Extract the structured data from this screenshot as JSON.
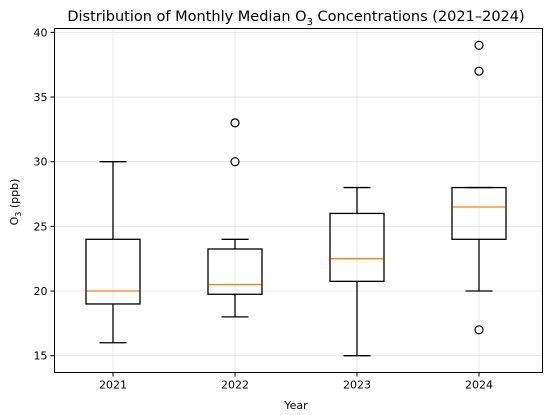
{
  "colors": {
    "median": "#ff7f0e",
    "box": "#000000",
    "grid": "#e3e3e3"
  },
  "chart_data": {
    "type": "boxplot",
    "title_main": "Distribution of Monthly Median O",
    "title_sub": "3",
    "title_rest": " Concentrations (2021–2024)",
    "xlabel": "Year",
    "ylabel_main": "O",
    "ylabel_sub": "3",
    "ylabel_rest": " (ppb)",
    "categories": [
      "2021",
      "2022",
      "2023",
      "2024"
    ],
    "yticks": [
      15,
      20,
      25,
      30,
      35,
      40
    ],
    "ylim": [
      13.7,
      40.3
    ],
    "grid": true,
    "boxes": [
      {
        "label": "2021",
        "whislo": 16,
        "q1": 19,
        "med": 20,
        "q3": 24,
        "whishi": 30,
        "fliers": []
      },
      {
        "label": "2022",
        "whislo": 18,
        "q1": 19.75,
        "med": 20.5,
        "q3": 23.25,
        "whishi": 24,
        "fliers": [
          30,
          33
        ]
      },
      {
        "label": "2023",
        "whislo": 15,
        "q1": 20.75,
        "med": 22.5,
        "q3": 26,
        "whishi": 28,
        "fliers": []
      },
      {
        "label": "2024",
        "whislo": 20,
        "q1": 24,
        "med": 26.5,
        "q3": 28,
        "whishi": 28,
        "fliers": [
          17,
          37,
          39
        ]
      }
    ]
  }
}
